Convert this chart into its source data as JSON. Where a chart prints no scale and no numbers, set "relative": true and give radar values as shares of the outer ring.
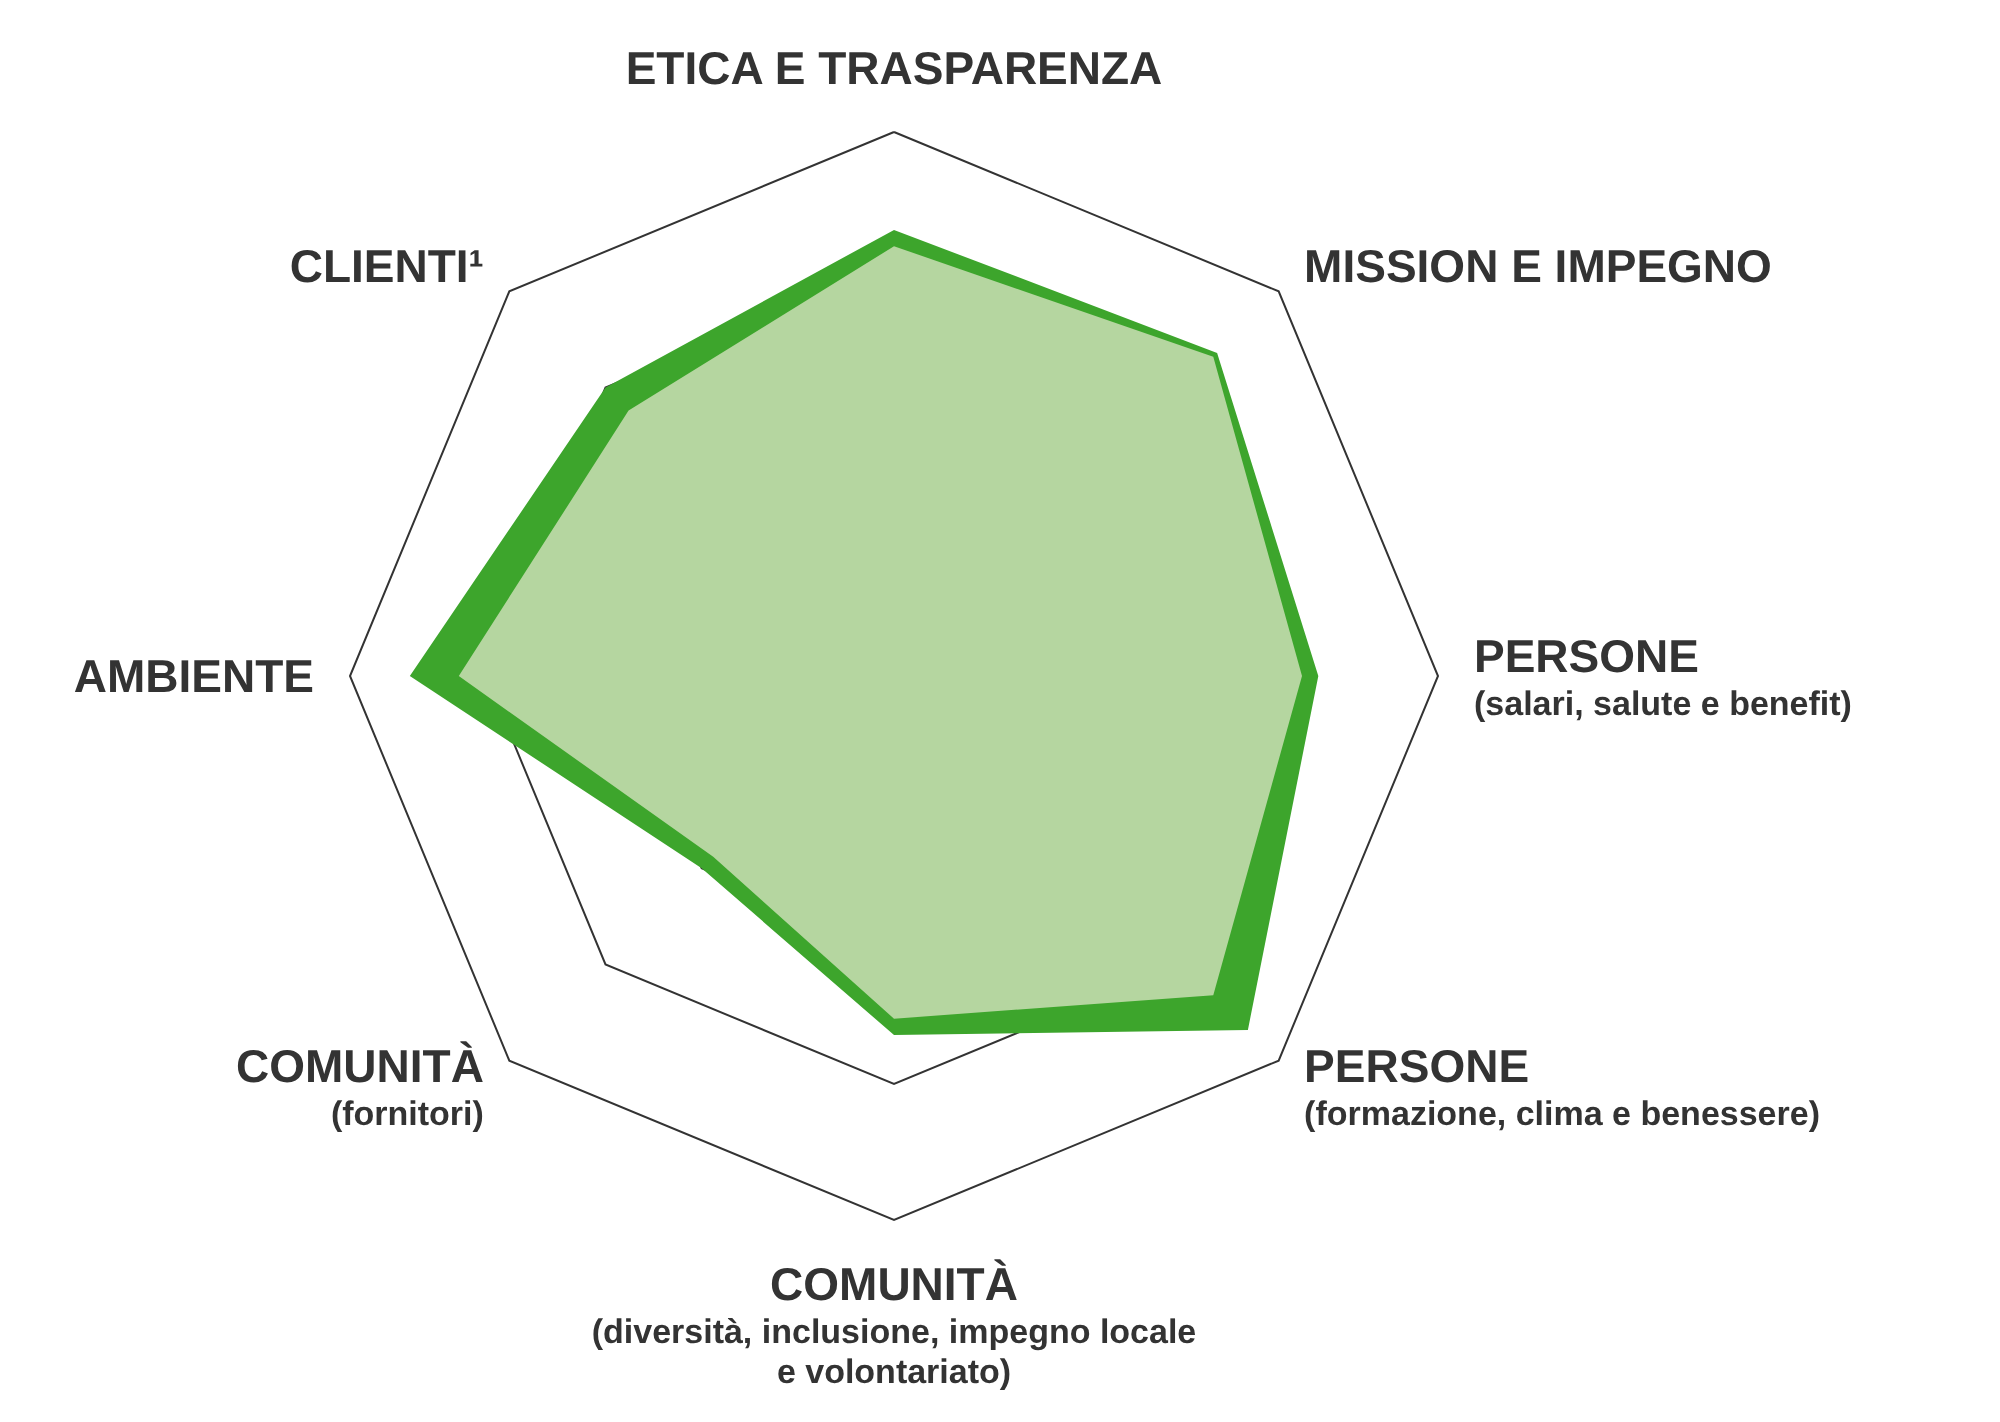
{
  "chart_data": {
    "type": "radar",
    "relative": true,
    "grid": true,
    "categories": [
      "ETICA E TRASPARENZA",
      "MISSION E IMPEGNO",
      "PERSONE\n(salari, salute e benefit)",
      "PERSONE\n(formazione, clima e benessere)",
      "COMUNITÀ\n(diversità, inclusione, impegno locale\ne volontariato)",
      "COMUNITÀ\n(fornitori)",
      "AMBIENTE",
      "CLIENTI¹"
    ],
    "series": [
      {
        "color": "#3da52c",
        "values": [
          0.82,
          0.84,
          0.78,
          0.92,
          0.66,
          0.5,
          0.89,
          0.75
        ]
      },
      {
        "color": "#b5d6a0",
        "values": [
          0.79,
          0.83,
          0.75,
          0.83,
          0.63,
          0.47,
          0.8,
          0.69
        ]
      }
    ]
  }
}
